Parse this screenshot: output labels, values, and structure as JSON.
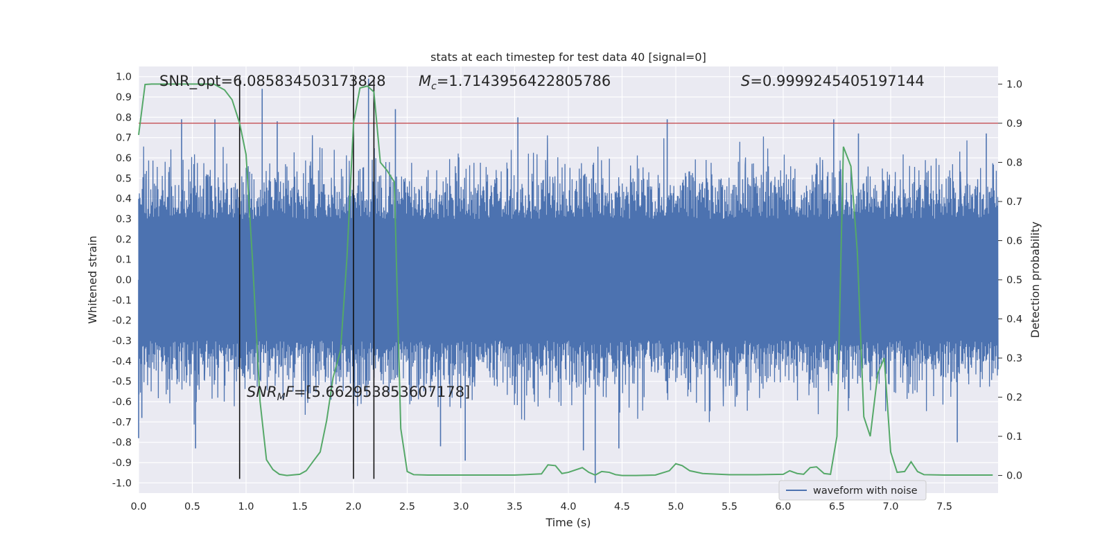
{
  "chart_data": {
    "type": "line",
    "title": "stats at each timestep for test data 40 [signal=0]",
    "xlabel": "Time (s)",
    "ylabel": "Whitened strain",
    "y2label": "Detection probability",
    "xlim": [
      0.0,
      8.0
    ],
    "ylim": [
      -1.05,
      1.05
    ],
    "y2lim": [
      -0.045,
      1.045
    ],
    "x_ticks": [
      0.0,
      0.5,
      1.0,
      1.5,
      2.0,
      2.5,
      3.0,
      3.5,
      4.0,
      4.5,
      5.0,
      5.5,
      6.0,
      6.5,
      7.0,
      7.5
    ],
    "x_tick_labels": [
      "0.0",
      "0.5",
      "1.0",
      "1.5",
      "2.0",
      "2.5",
      "3.0",
      "3.5",
      "4.0",
      "4.5",
      "5.0",
      "5.5",
      "6.0",
      "6.5",
      "7.0",
      "7.5"
    ],
    "y_ticks": [
      1.0,
      0.9,
      0.8,
      0.7,
      0.6,
      0.5,
      0.4,
      0.3,
      0.2,
      0.1,
      0.0,
      -0.1,
      -0.2,
      -0.3,
      -0.4,
      -0.5,
      -0.6,
      -0.7,
      -0.8,
      -0.9,
      -1.0
    ],
    "y_tick_labels": [
      "1.0",
      "0.9",
      "0.8",
      "0.7",
      "0.6",
      "0.5",
      "0.4",
      "0.3",
      "0.2",
      "0.1",
      "0.0",
      "-0.1",
      "-0.2",
      "-0.3",
      "-0.4",
      "-0.5",
      "-0.6",
      "-0.7",
      "-0.8",
      "-0.9",
      "-1.0"
    ],
    "y2_ticks": [
      1.0,
      0.9,
      0.8,
      0.7,
      0.6,
      0.5,
      0.4,
      0.3,
      0.2,
      0.1,
      0.0
    ],
    "y2_tick_labels": [
      "1.0",
      "0.9",
      "0.8",
      "0.7",
      "0.6",
      "0.5",
      "0.4",
      "0.3",
      "0.2",
      "0.1",
      "0.0"
    ],
    "grid": true,
    "threshold": {
      "axis": "y2",
      "value": 0.9,
      "color": "#c44e52"
    },
    "vertical_markers": [
      0.94,
      2.0,
      2.19
    ],
    "marker_y_range": [
      -0.98,
      1.0
    ],
    "series": [
      {
        "name": "waveform with noise",
        "axis": "y",
        "color": "#4c72b0",
        "style": "noise",
        "core_amplitude": 0.3,
        "peaks": [
          {
            "x": 0.0,
            "y": -0.78
          },
          {
            "x": 0.03,
            "y": -0.68
          },
          {
            "x": 0.4,
            "y": 0.79
          },
          {
            "x": 0.53,
            "y": -0.83
          },
          {
            "x": 0.71,
            "y": 0.79
          },
          {
            "x": 1.15,
            "y": 0.94
          },
          {
            "x": 1.29,
            "y": 0.78
          },
          {
            "x": 2.14,
            "y": 0.99
          },
          {
            "x": 2.39,
            "y": 0.84
          },
          {
            "x": 2.81,
            "y": -0.82
          },
          {
            "x": 3.04,
            "y": -0.89
          },
          {
            "x": 3.53,
            "y": 0.8
          },
          {
            "x": 4.14,
            "y": -0.84
          },
          {
            "x": 4.25,
            "y": -1.0
          },
          {
            "x": 4.47,
            "y": -0.83
          },
          {
            "x": 4.92,
            "y": 0.79
          },
          {
            "x": 6.47,
            "y": 0.79
          },
          {
            "x": 6.7,
            "y": 0.72
          },
          {
            "x": 7.62,
            "y": -0.8
          },
          {
            "x": 7.89,
            "y": 0.72
          }
        ]
      },
      {
        "name": "detection probability",
        "axis": "y2",
        "color": "#55a868",
        "x": [
          0.0,
          0.06,
          0.12,
          0.2,
          0.3,
          0.4,
          0.5,
          0.6,
          0.7,
          0.8,
          0.87,
          0.94,
          1.0,
          1.06,
          1.13,
          1.19,
          1.25,
          1.31,
          1.38,
          1.5,
          1.56,
          1.63,
          1.69,
          1.75,
          1.81,
          1.88,
          1.94,
          2.0,
          2.06,
          2.13,
          2.19,
          2.25,
          2.31,
          2.38,
          2.44,
          2.5,
          2.56,
          2.69,
          2.81,
          3.0,
          3.5,
          3.75,
          3.81,
          3.88,
          3.94,
          4.0,
          4.13,
          4.19,
          4.25,
          4.31,
          4.38,
          4.44,
          4.5,
          4.63,
          4.81,
          4.94,
          5.0,
          5.06,
          5.13,
          5.25,
          5.5,
          5.75,
          6.0,
          6.06,
          6.13,
          6.19,
          6.25,
          6.31,
          6.38,
          6.44,
          6.5,
          6.56,
          6.63,
          6.69,
          6.75,
          6.81,
          6.88,
          6.94,
          7.0,
          7.06,
          7.13,
          7.19,
          7.25,
          7.31,
          7.5,
          7.75,
          7.95
        ],
        "values": [
          0.87,
          0.999,
          1.0,
          1.0,
          1.0,
          1.0,
          1.0,
          1.0,
          1.0,
          0.985,
          0.96,
          0.9,
          0.82,
          0.55,
          0.19,
          0.04,
          0.015,
          0.003,
          0.0,
          0.003,
          0.012,
          0.038,
          0.06,
          0.14,
          0.25,
          0.32,
          0.56,
          0.9,
          0.99,
          0.995,
          0.98,
          0.8,
          0.78,
          0.75,
          0.12,
          0.01,
          0.002,
          0.001,
          0.001,
          0.001,
          0.001,
          0.004,
          0.027,
          0.025,
          0.005,
          0.008,
          0.02,
          0.008,
          0.001,
          0.01,
          0.008,
          0.002,
          0.0,
          0.0,
          0.001,
          0.012,
          0.03,
          0.025,
          0.012,
          0.005,
          0.002,
          0.002,
          0.003,
          0.012,
          0.005,
          0.003,
          0.02,
          0.022,
          0.005,
          0.003,
          0.1,
          0.84,
          0.79,
          0.57,
          0.15,
          0.1,
          0.26,
          0.3,
          0.06,
          0.008,
          0.01,
          0.035,
          0.01,
          0.002,
          0.001,
          0.001,
          0.001
        ]
      }
    ],
    "legend": {
      "position": "lower-right",
      "entries": [
        "waveform with noise"
      ]
    },
    "annotations": {
      "snr_opt": "SNR_opt=6.085834503173828",
      "mc_symbol": "M",
      "mc_sub": "c",
      "mc_value": "=1.7143956422805786",
      "s_symbol": "S",
      "s_value": "=0.9999245405197144",
      "snr_mf_symbol": "SNR",
      "snr_mf_sub": "M",
      "snr_mf_tail": "F",
      "snr_mf_value": "=[5.662953853607178]"
    }
  }
}
